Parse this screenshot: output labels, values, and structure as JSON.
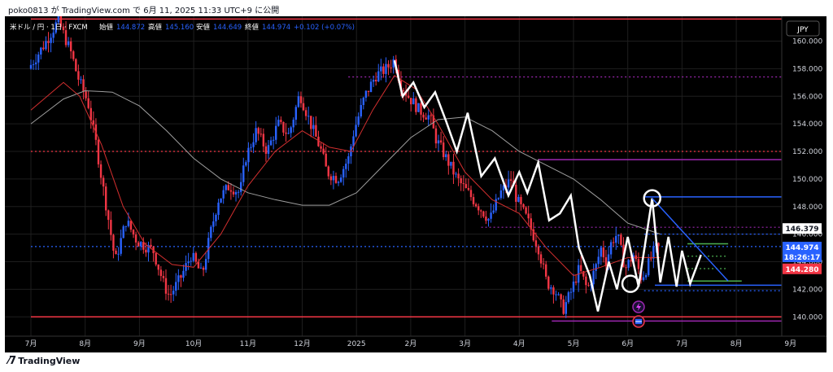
{
  "header": {
    "published_text": "poko0813 が TradingView.com で 6月 11, 2025 11:33 UTC+9 に公開"
  },
  "footer": {
    "brand": "TradingView"
  },
  "legend": {
    "symbol": "米ドル / 円 · 1日 · FXCM",
    "open_label": "始値",
    "open": "144.872",
    "high_label": "高値",
    "high": "145.160",
    "low_label": "安値",
    "low": "144.649",
    "close_label": "終値",
    "close": "144.974",
    "change": "+0.102 (+0.07%)"
  },
  "currency_button": "JPY",
  "colors": {
    "up": "#2962ff",
    "down": "#f23645",
    "ma_fast": "#d32f2f",
    "ma_slow": "#9e9e9e",
    "background": "#000000",
    "grid": "#1e1e1e",
    "purple": "#9c27b0",
    "green": "#4caf50",
    "white": "#ffffff"
  },
  "chart_data": {
    "type": "candlestick",
    "instrument": "USD/JPY",
    "timeframe": "1D",
    "ylim": [
      138.6,
      161.8
    ],
    "y_ticks": [
      "160.000",
      "158.000",
      "156.000",
      "154.000",
      "152.000",
      "150.000",
      "148.000",
      "146.000",
      "144.000",
      "142.000",
      "140.000"
    ],
    "x_ticks": [
      "7月",
      "8月",
      "9月",
      "10月",
      "11月",
      "12月",
      "2025",
      "2月",
      "3月",
      "4月",
      "5月",
      "6月",
      "7月",
      "8月",
      "9月"
    ],
    "month_index": [
      0,
      1,
      2,
      3,
      4,
      5,
      6,
      7,
      8,
      9,
      10,
      11,
      12,
      13,
      14
    ],
    "price_path": [
      [
        0.0,
        158.0
      ],
      [
        0.3,
        159.8
      ],
      [
        0.55,
        161.5
      ],
      [
        0.8,
        159.0
      ],
      [
        0.9,
        157.5
      ],
      [
        1.1,
        155.5
      ],
      [
        1.25,
        152.5
      ],
      [
        1.35,
        150.0
      ],
      [
        1.5,
        146.5
      ],
      [
        1.6,
        144.0
      ],
      [
        1.8,
        147.0
      ],
      [
        2.0,
        145.5
      ],
      [
        2.3,
        144.8
      ],
      [
        2.5,
        142.3
      ],
      [
        2.6,
        141.5
      ],
      [
        2.8,
        142.8
      ],
      [
        3.0,
        144.5
      ],
      [
        3.2,
        143.0
      ],
      [
        3.35,
        146.0
      ],
      [
        3.5,
        148.5
      ],
      [
        3.7,
        149.5
      ],
      [
        3.9,
        149.0
      ],
      [
        4.0,
        151.5
      ],
      [
        4.2,
        153.5
      ],
      [
        4.4,
        152.0
      ],
      [
        4.6,
        154.0
      ],
      [
        4.8,
        153.2
      ],
      [
        5.0,
        156.2
      ],
      [
        5.2,
        154.0
      ],
      [
        5.4,
        152.0
      ],
      [
        5.5,
        150.5
      ],
      [
        5.7,
        150.0
      ],
      [
        5.9,
        151.5
      ],
      [
        6.0,
        153.5
      ],
      [
        6.2,
        156.0
      ],
      [
        6.4,
        157.5
      ],
      [
        6.6,
        158.0
      ],
      [
        6.75,
        158.7
      ],
      [
        6.85,
        157.0
      ],
      [
        7.0,
        156.0
      ],
      [
        7.2,
        155.0
      ],
      [
        7.4,
        154.5
      ],
      [
        7.5,
        153.0
      ],
      [
        7.7,
        151.5
      ],
      [
        7.9,
        150.0
      ],
      [
        8.1,
        149.0
      ],
      [
        8.3,
        148.0
      ],
      [
        8.5,
        147.0
      ],
      [
        8.7,
        149.0
      ],
      [
        8.9,
        150.0
      ],
      [
        9.0,
        148.5
      ],
      [
        9.2,
        147.0
      ],
      [
        9.4,
        145.0
      ],
      [
        9.55,
        142.5
      ],
      [
        9.7,
        142.0
      ],
      [
        9.85,
        140.5
      ],
      [
        10.0,
        141.8
      ],
      [
        10.15,
        143.5
      ],
      [
        10.3,
        142.0
      ],
      [
        10.45,
        143.5
      ],
      [
        10.55,
        145.0
      ],
      [
        10.65,
        144.0
      ],
      [
        10.75,
        145.5
      ],
      [
        10.85,
        146.0
      ],
      [
        11.0,
        143.5
      ],
      [
        11.15,
        144.5
      ],
      [
        11.3,
        142.8
      ],
      [
        11.45,
        144.0
      ],
      [
        11.55,
        145.0
      ],
      [
        11.6,
        144.97
      ]
    ],
    "ma_fast_path": [
      [
        0.0,
        155.0
      ],
      [
        0.6,
        157.0
      ],
      [
        0.9,
        156.0
      ],
      [
        1.3,
        152.5
      ],
      [
        1.7,
        148.0
      ],
      [
        2.1,
        145.3
      ],
      [
        2.6,
        143.8
      ],
      [
        3.0,
        143.6
      ],
      [
        3.5,
        146.0
      ],
      [
        4.0,
        149.5
      ],
      [
        4.5,
        152.0
      ],
      [
        5.0,
        153.5
      ],
      [
        5.5,
        152.3
      ],
      [
        5.9,
        152.0
      ],
      [
        6.3,
        155.0
      ],
      [
        6.7,
        157.5
      ],
      [
        7.1,
        156.5
      ],
      [
        7.5,
        154.0
      ],
      [
        8.0,
        150.5
      ],
      [
        8.5,
        148.5
      ],
      [
        9.0,
        147.5
      ],
      [
        9.5,
        145.0
      ],
      [
        10.0,
        143.0
      ],
      [
        10.5,
        143.6
      ],
      [
        11.0,
        144.3
      ],
      [
        11.6,
        144.3
      ]
    ],
    "ma_slow_path": [
      [
        0.0,
        154.0
      ],
      [
        0.6,
        155.8
      ],
      [
        1.0,
        156.4
      ],
      [
        1.5,
        156.3
      ],
      [
        2.0,
        155.3
      ],
      [
        2.5,
        153.5
      ],
      [
        3.0,
        151.5
      ],
      [
        3.5,
        150.0
      ],
      [
        4.0,
        149.0
      ],
      [
        4.5,
        148.5
      ],
      [
        5.0,
        148.1
      ],
      [
        5.5,
        148.1
      ],
      [
        6.0,
        149.0
      ],
      [
        6.5,
        151.0
      ],
      [
        7.0,
        153.0
      ],
      [
        7.5,
        154.3
      ],
      [
        8.0,
        154.5
      ],
      [
        8.5,
        153.5
      ],
      [
        9.0,
        152.0
      ],
      [
        9.5,
        151.0
      ],
      [
        10.0,
        150.0
      ],
      [
        10.5,
        148.5
      ],
      [
        11.0,
        146.8
      ],
      [
        11.6,
        146.0
      ]
    ],
    "zigzag": [
      [
        6.7,
        158.6
      ],
      [
        6.85,
        156.0
      ],
      [
        7.05,
        157.0
      ],
      [
        7.25,
        155.2
      ],
      [
        7.45,
        156.3
      ],
      [
        7.65,
        154.2
      ],
      [
        7.85,
        152.0
      ],
      [
        8.05,
        154.8
      ],
      [
        8.3,
        150.2
      ],
      [
        8.55,
        151.5
      ],
      [
        8.8,
        148.8
      ],
      [
        9.0,
        150.5
      ],
      [
        9.15,
        149.0
      ],
      [
        9.35,
        151.2
      ],
      [
        9.55,
        147.0
      ],
      [
        9.75,
        147.5
      ],
      [
        9.95,
        148.8
      ],
      [
        10.1,
        145.0
      ],
      [
        10.3,
        143.0
      ],
      [
        10.45,
        140.4
      ],
      [
        10.65,
        144.0
      ],
      [
        10.8,
        142.0
      ],
      [
        11.0,
        145.8
      ],
      [
        11.2,
        142.2
      ],
      [
        11.45,
        148.6
      ],
      [
        11.6,
        142.5
      ],
      [
        11.75,
        145.8
      ],
      [
        11.9,
        142.2
      ],
      [
        12.0,
        144.8
      ],
      [
        12.15,
        142.4
      ],
      [
        12.35,
        144.5
      ]
    ],
    "annotations": {
      "circle_top": [
        11.45,
        148.6
      ],
      "circle_bottom": [
        11.05,
        142.4
      ],
      "trendline_upper": [
        [
          11.45,
          148.6
        ],
        [
          12.85,
          142.6
        ]
      ],
      "horizontal_lines": [
        {
          "y": 140.0,
          "x0": 0,
          "x1": 15.2,
          "color": "#f23645",
          "style": "solid"
        },
        {
          "y": 161.6,
          "x0": 0,
          "x1": 15.2,
          "color": "#f23645",
          "style": "solid"
        },
        {
          "y": 152.0,
          "x0": 0,
          "x1": 15.2,
          "color": "#f23645",
          "style": "dotted"
        },
        {
          "y": 157.4,
          "x0": 5.85,
          "x1": 15.2,
          "color": "#9c27b0",
          "style": "dotted"
        },
        {
          "y": 151.4,
          "x0": 9.35,
          "x1": 15.2,
          "color": "#9c27b0",
          "style": "solid"
        },
        {
          "y": 146.5,
          "x0": 8.3,
          "x1": 15.2,
          "color": "#9c27b0",
          "style": "dotted"
        },
        {
          "y": 139.7,
          "x0": 9.6,
          "x1": 15.2,
          "color": "#9c27b0",
          "style": "solid"
        },
        {
          "y": 148.7,
          "x0": 11.3,
          "x1": 15.2,
          "color": "#2962ff",
          "style": "solid"
        },
        {
          "y": 142.3,
          "x0": 11.5,
          "x1": 15.2,
          "color": "#2962ff",
          "style": "solid"
        },
        {
          "y": 145.1,
          "x0": 0,
          "x1": 15.2,
          "color": "#2962ff",
          "style": "dotted"
        },
        {
          "y": 146.0,
          "x0": 11.3,
          "x1": 15.2,
          "color": "#2962ff",
          "style": "dotted"
        },
        {
          "y": 141.9,
          "x0": 11.3,
          "x1": 15.2,
          "color": "#2962ff",
          "style": "dotted"
        },
        {
          "y": 145.3,
          "x0": 12.1,
          "x1": 12.85,
          "color": "#4caf50",
          "style": "solid"
        },
        {
          "y": 144.4,
          "x0": 12.1,
          "x1": 12.85,
          "color": "#4caf50",
          "style": "dotted"
        },
        {
          "y": 143.5,
          "x0": 12.1,
          "x1": 12.85,
          "color": "#4caf50",
          "style": "dotted"
        },
        {
          "y": 142.6,
          "x0": 12.1,
          "x1": 13.1,
          "color": "#4caf50",
          "style": "solid"
        }
      ]
    },
    "price_labels": [
      {
        "value": "146.379",
        "bg": "#ffffff",
        "fg": "#131722"
      },
      {
        "value": "144.974",
        "bg": "#2962ff",
        "fg": "#ffffff"
      },
      {
        "value": "18:26:17",
        "bg": "#2962ff",
        "fg": "#ffffff"
      },
      {
        "value": "144.280",
        "bg": "#f23645",
        "fg": "#ffffff"
      }
    ]
  }
}
